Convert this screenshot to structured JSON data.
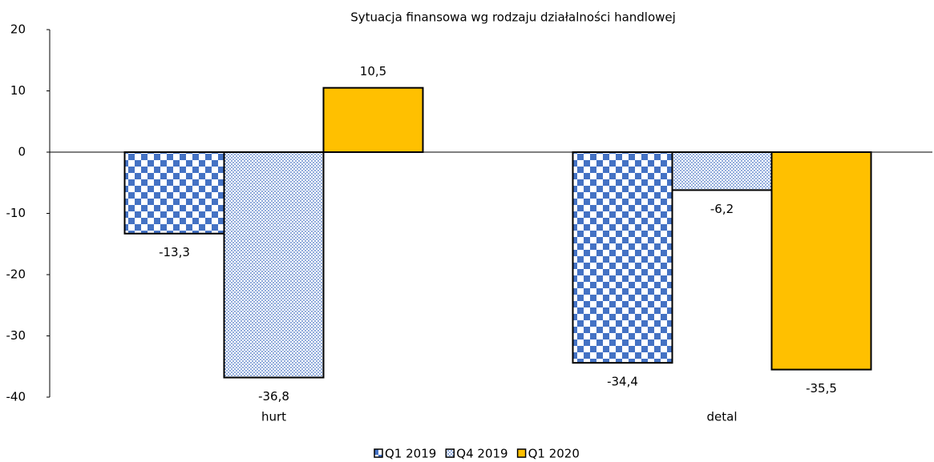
{
  "chart_data": {
    "type": "bar",
    "title": "Sytuacja finansowa wg rodzaju działalności handlowej",
    "categories": [
      "hurt",
      "detal"
    ],
    "series": [
      {
        "name": "Q1 2019",
        "color": "#4472c4",
        "pattern": "checker",
        "values": [
          -13.3,
          -34.4
        ],
        "value_labels": [
          "-13,3",
          "-34,4"
        ]
      },
      {
        "name": "Q4 2019",
        "color": "#4472c4",
        "pattern": "dots",
        "values": [
          -36.8,
          -6.2
        ],
        "value_labels": [
          "-36,8",
          "-6,2"
        ]
      },
      {
        "name": "Q1 2020",
        "color": "#ffc000",
        "values": [
          10.5,
          -35.5
        ],
        "value_labels": [
          "10,5",
          "-35,5"
        ]
      }
    ],
    "ylim": [
      -40,
      20
    ],
    "yticks": [
      -40,
      -30,
      -20,
      -10,
      0,
      10,
      20
    ],
    "grid": false,
    "legend": "bottom"
  }
}
